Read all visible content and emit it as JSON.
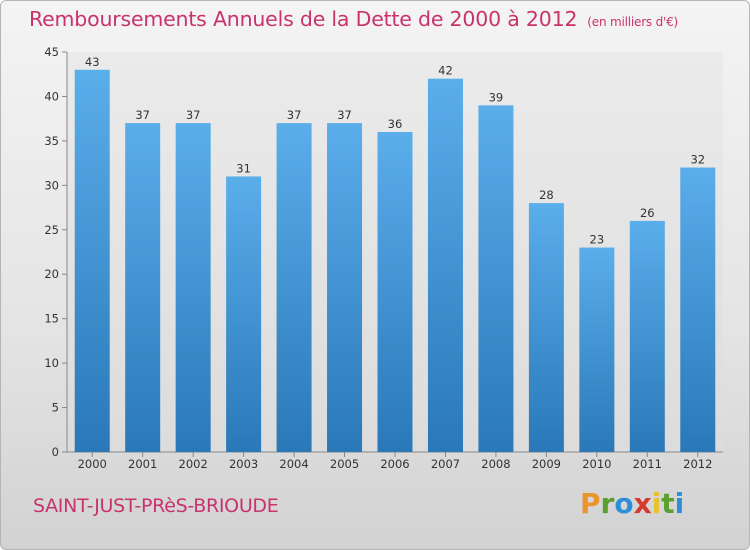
{
  "header": {
    "title": "Remboursements Annuels de la Dette de 2000 à 2012",
    "unit": "(en milliers d'€)"
  },
  "footer": {
    "commune": "SAINT-JUST-PRèS-BRIOUDE",
    "logo_letters": [
      {
        "char": "P",
        "color": "#e8952c"
      },
      {
        "char": "r",
        "color": "#5aa02c"
      },
      {
        "char": "o",
        "color": "#2f8fd6"
      },
      {
        "char": "x",
        "color": "#d63a2f"
      },
      {
        "char": "i",
        "color": "#e8c22c"
      },
      {
        "char": "t",
        "color": "#5aa02c"
      },
      {
        "char": "i",
        "color": "#2f8fd6"
      }
    ]
  },
  "chart_data": {
    "type": "bar",
    "title": "Remboursements Annuels de la Dette de 2000 à 2012",
    "subtitle": "(en milliers d'€)",
    "xlabel": "",
    "ylabel": "",
    "categories": [
      "2000",
      "2001",
      "2002",
      "2003",
      "2004",
      "2005",
      "2006",
      "2007",
      "2008",
      "2009",
      "2010",
      "2011",
      "2012"
    ],
    "values": [
      43,
      37,
      37,
      31,
      37,
      37,
      36,
      42,
      39,
      28,
      23,
      26,
      32
    ],
    "ylim": [
      0,
      45
    ],
    "yticks": [
      0,
      5,
      10,
      15,
      20,
      25,
      30,
      35,
      40,
      45
    ],
    "grid": false,
    "bar_color_top": "#5aaeea",
    "bar_color_bottom": "#2a78b8"
  }
}
